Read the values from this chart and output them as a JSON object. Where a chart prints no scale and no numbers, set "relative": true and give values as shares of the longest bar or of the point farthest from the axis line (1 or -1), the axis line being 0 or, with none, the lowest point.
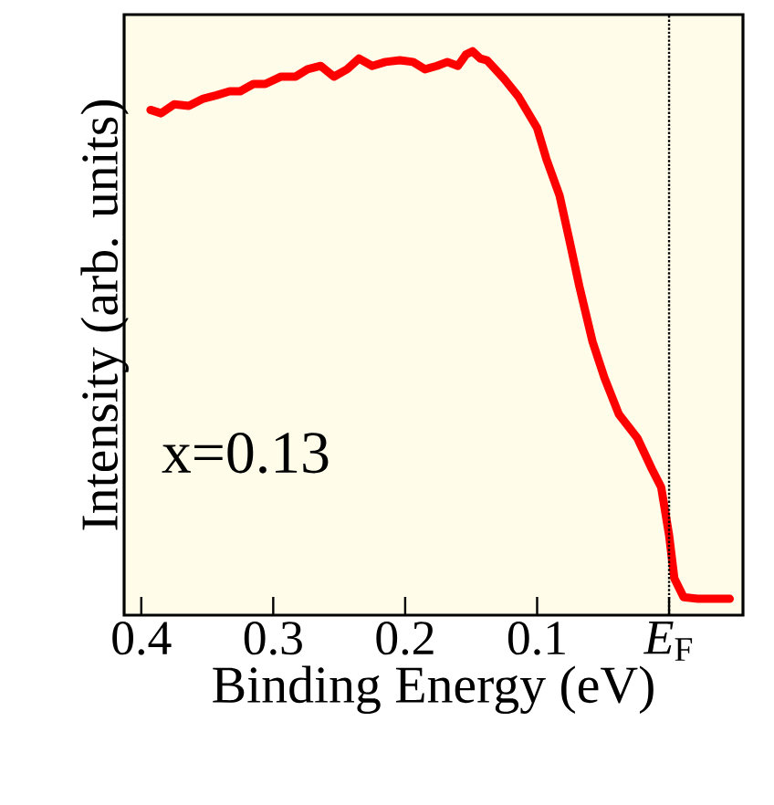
{
  "chart_data": {
    "type": "line",
    "xlabel": "Binding Energy (eV)",
    "ylabel": "Intensity (arb. units)",
    "relative": true,
    "color": "#ff0000",
    "xlim": [
      0.413,
      -0.056
    ],
    "xticks": [
      0.4,
      0.3,
      0.2,
      0.1,
      {
        "value": 0,
        "label": "*E*$_{F}$"
      }
    ],
    "x": [
      0.393,
      0.385,
      0.375,
      0.364,
      0.353,
      0.343,
      0.333,
      0.325,
      0.315,
      0.306,
      0.294,
      0.283,
      0.274,
      0.264,
      0.254,
      0.244,
      0.235,
      0.225,
      0.215,
      0.204,
      0.194,
      0.185,
      0.176,
      0.168,
      0.16,
      0.154,
      0.149,
      0.143,
      0.138,
      0.125,
      0.114,
      0.1,
      0.093,
      0.083,
      0.076,
      0.068,
      0.058,
      0.049,
      0.038,
      0.024,
      0.013,
      0.006,
      0.0,
      -0.004,
      -0.011,
      -0.022,
      -0.046
    ],
    "values": [
      0.896,
      0.89,
      0.906,
      0.903,
      0.916,
      0.922,
      0.929,
      0.929,
      0.942,
      0.942,
      0.955,
      0.955,
      0.968,
      0.974,
      0.955,
      0.968,
      0.987,
      0.974,
      0.981,
      0.984,
      0.981,
      0.968,
      0.974,
      0.981,
      0.974,
      0.994,
      1.0,
      0.987,
      0.984,
      0.951,
      0.919,
      0.864,
      0.809,
      0.744,
      0.67,
      0.583,
      0.485,
      0.421,
      0.356,
      0.314,
      0.259,
      0.227,
      0.142,
      0.065,
      0.032,
      0.029,
      0.029
    ],
    "ref_lines": [
      {
        "axis": "x",
        "value": 0,
        "line_style": "dotted",
        "color": "#000000"
      }
    ],
    "annotations": [
      "x=0.13"
    ]
  }
}
